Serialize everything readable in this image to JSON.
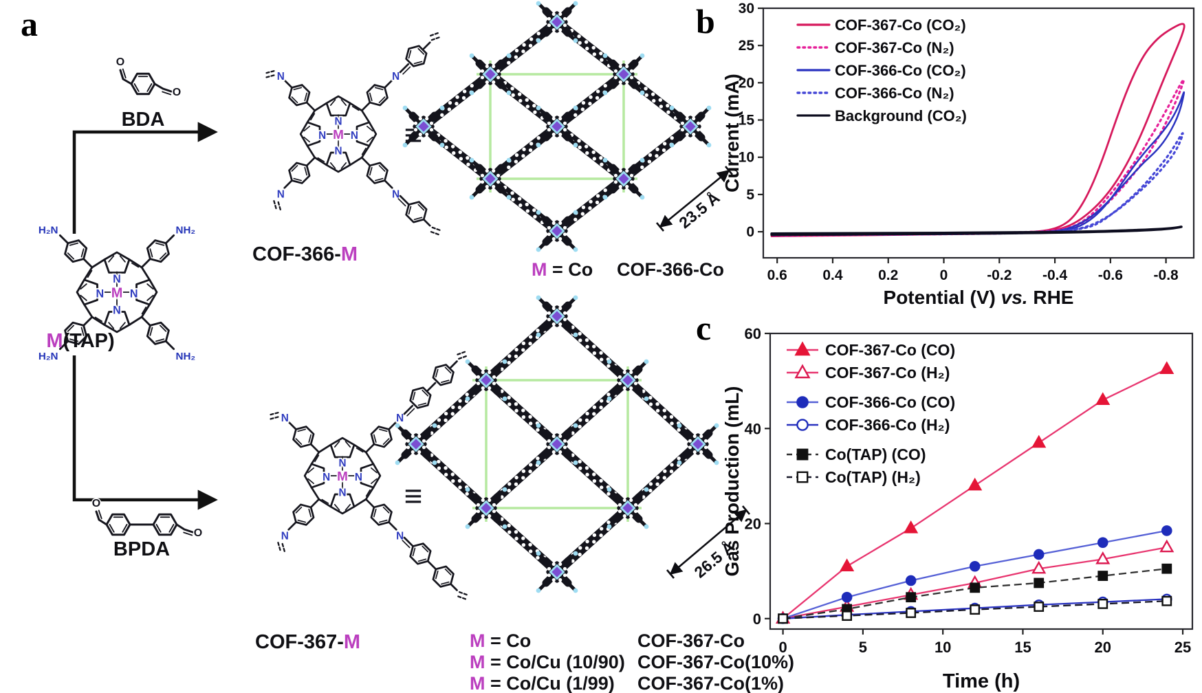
{
  "panel_a": {
    "label": "a",
    "bda_label": "BDA",
    "bpda_label": "BPDA",
    "equiv": "≡",
    "atoms": {
      "M": "M",
      "N": "N",
      "O": "O",
      "H2N": "H₂N",
      "NH2": "NH₂"
    },
    "mtap": {
      "m": "M",
      "rest": "(TAP)"
    },
    "cof366m": {
      "pre": "COF-366-",
      "m": "M"
    },
    "cof367m": {
      "pre": "COF-367-",
      "m": "M"
    },
    "crystal366": {
      "m": "M",
      "eq": " = Co",
      "name": "COF-366-Co",
      "dim": "23.5 Å"
    },
    "crystal367": {
      "dim": "26.5 Å",
      "rows": [
        {
          "m": "M",
          "eq": " = Co",
          "name": "COF-367-Co"
        },
        {
          "m": "M",
          "eq": " = Co/Cu (10/90)",
          "name": "COF-367-Co(10%)"
        },
        {
          "m": "M",
          "eq": " = Co/Cu (1/99)",
          "name": "COF-367-Co(1%)"
        }
      ]
    }
  },
  "panel_b": {
    "label": "b"
  },
  "panel_c": {
    "label": "c"
  },
  "colors": {
    "crimson_solid": "#d6195c",
    "pink_dotted": "#e62099",
    "blue_solid": "#2a33c0",
    "blue_dotted": "#4547d6",
    "background_line": "#0d0d1f",
    "metal_purple": "#7b4ed2",
    "nitrogen_cyan": "#9edcf2",
    "cell_green": "#b6e9a0",
    "magenta_M": "#bb3fbf"
  },
  "chart_data": [
    {
      "id": "cv",
      "type": "line",
      "xlabel_pre": "Potential (V) ",
      "xlabel_vs": "vs.",
      "xlabel_post": " RHE",
      "ylabel": "Current (mA)",
      "xlim": [
        0.65,
        -0.9
      ],
      "ylim": [
        -3.5,
        30
      ],
      "xticks": [
        0.6,
        0.4,
        0.2,
        0,
        -0.2,
        -0.4,
        -0.6,
        -0.8
      ],
      "yticks": [
        0,
        5,
        10,
        15,
        20,
        25,
        30
      ],
      "grid": false,
      "legend_position": "top-left",
      "series": [
        {
          "name": "COF-367-Co (CO₂)",
          "color": "#d6195c",
          "dash": "solid",
          "width": 2.8,
          "points": [
            [
              0.62,
              -0.55
            ],
            [
              0.3,
              -0.4
            ],
            [
              0,
              -0.3
            ],
            [
              -0.2,
              -0.2
            ],
            [
              -0.35,
              0
            ],
            [
              -0.42,
              0.6
            ],
            [
              -0.47,
              2
            ],
            [
              -0.52,
              5
            ],
            [
              -0.57,
              9.5
            ],
            [
              -0.62,
              15
            ],
            [
              -0.67,
              20
            ],
            [
              -0.72,
              23.8
            ],
            [
              -0.77,
              26
            ],
            [
              -0.82,
              27.3
            ],
            [
              -0.87,
              28.2
            ],
            [
              -0.86,
              26.5
            ],
            [
              -0.82,
              23
            ],
            [
              -0.77,
              18.5
            ],
            [
              -0.72,
              13.8
            ],
            [
              -0.67,
              9.8
            ],
            [
              -0.62,
              6.6
            ],
            [
              -0.57,
              4.2
            ],
            [
              -0.52,
              2.4
            ],
            [
              -0.47,
              1.1
            ],
            [
              -0.42,
              0.35
            ],
            [
              -0.36,
              0
            ],
            [
              -0.25,
              -0.2
            ],
            [
              0,
              -0.35
            ],
            [
              0.62,
              -0.6
            ]
          ]
        },
        {
          "name": "COF-367-Co (N₂)",
          "color": "#e62099",
          "dash": "dotted",
          "width": 3.2,
          "points": [
            [
              0.62,
              -0.35
            ],
            [
              0.1,
              -0.25
            ],
            [
              -0.3,
              -0.1
            ],
            [
              -0.44,
              0.3
            ],
            [
              -0.5,
              1.3
            ],
            [
              -0.55,
              2.9
            ],
            [
              -0.6,
              5
            ],
            [
              -0.65,
              7.4
            ],
            [
              -0.7,
              10
            ],
            [
              -0.75,
              13
            ],
            [
              -0.8,
              16.2
            ],
            [
              -0.85,
              19.7
            ],
            [
              -0.87,
              20.8
            ],
            [
              -0.84,
              17.8
            ],
            [
              -0.79,
              13.8
            ],
            [
              -0.74,
              10.6
            ],
            [
              -0.69,
              8
            ],
            [
              -0.64,
              5.8
            ],
            [
              -0.59,
              3.8
            ],
            [
              -0.54,
              2.2
            ],
            [
              -0.49,
              1
            ],
            [
              -0.44,
              0.3
            ],
            [
              -0.38,
              -0.05
            ],
            [
              -0.2,
              -0.25
            ],
            [
              0.2,
              -0.4
            ],
            [
              0.62,
              -0.5
            ]
          ]
        },
        {
          "name": "COF-366-Co (CO₂)",
          "color": "#2a33c0",
          "dash": "solid",
          "width": 2.5,
          "points": [
            [
              0.62,
              -0.4
            ],
            [
              0.1,
              -0.3
            ],
            [
              -0.3,
              -0.15
            ],
            [
              -0.45,
              0.2
            ],
            [
              -0.5,
              0.9
            ],
            [
              -0.55,
              2.2
            ],
            [
              -0.6,
              4.3
            ],
            [
              -0.65,
              7
            ],
            [
              -0.7,
              9.6
            ],
            [
              -0.74,
              11.4
            ],
            [
              -0.78,
              13
            ],
            [
              -0.82,
              15
            ],
            [
              -0.85,
              17.2
            ],
            [
              -0.87,
              19.4
            ],
            [
              -0.85,
              16
            ],
            [
              -0.81,
              13
            ],
            [
              -0.77,
              11
            ],
            [
              -0.72,
              9.3
            ],
            [
              -0.67,
              7.3
            ],
            [
              -0.62,
              5.2
            ],
            [
              -0.57,
              3.2
            ],
            [
              -0.52,
              1.7
            ],
            [
              -0.47,
              0.7
            ],
            [
              -0.42,
              0.15
            ],
            [
              -0.35,
              -0.1
            ],
            [
              -0.1,
              -0.3
            ],
            [
              0.62,
              -0.45
            ]
          ]
        },
        {
          "name": "COF-366-Co (N₂)",
          "color": "#4547d6",
          "dash": "dotted",
          "width": 3.2,
          "points": [
            [
              0.62,
              -0.3
            ],
            [
              0,
              -0.2
            ],
            [
              -0.4,
              -0.05
            ],
            [
              -0.52,
              0.5
            ],
            [
              -0.57,
              1.4
            ],
            [
              -0.62,
              2.8
            ],
            [
              -0.67,
              4.4
            ],
            [
              -0.72,
              6.2
            ],
            [
              -0.77,
              8.4
            ],
            [
              -0.82,
              10.8
            ],
            [
              -0.87,
              14
            ],
            [
              -0.84,
              11
            ],
            [
              -0.79,
              8.6
            ],
            [
              -0.74,
              6.6
            ],
            [
              -0.69,
              4.9
            ],
            [
              -0.64,
              3.3
            ],
            [
              -0.59,
              2
            ],
            [
              -0.54,
              1
            ],
            [
              -0.49,
              0.4
            ],
            [
              -0.42,
              0
            ],
            [
              -0.3,
              -0.2
            ],
            [
              0.1,
              -0.35
            ],
            [
              0.62,
              -0.45
            ]
          ]
        },
        {
          "name": "Background (CO₂)",
          "color": "#0d0d1f",
          "dash": "solid",
          "width": 3.6,
          "points": [
            [
              0.62,
              -0.25
            ],
            [
              0.2,
              -0.2
            ],
            [
              -0.2,
              -0.12
            ],
            [
              -0.5,
              0
            ],
            [
              -0.65,
              0.15
            ],
            [
              -0.75,
              0.3
            ],
            [
              -0.82,
              0.45
            ],
            [
              -0.87,
              0.75
            ],
            [
              -0.8,
              0.3
            ],
            [
              -0.6,
              0.02
            ],
            [
              -0.3,
              -0.18
            ],
            [
              0.1,
              -0.3
            ],
            [
              0.62,
              -0.4
            ]
          ]
        }
      ]
    },
    {
      "id": "gas",
      "type": "line",
      "xlabel": "Time (h)",
      "ylabel": "Gas  Production (mL)",
      "xlim": [
        -0.8,
        25.6
      ],
      "ylim": [
        -2.2,
        60
      ],
      "xticks": [
        0,
        5,
        10,
        15,
        20,
        25
      ],
      "yticks": [
        0,
        20,
        40,
        60
      ],
      "grid": false,
      "legend_position": "top-left",
      "x": [
        0,
        4,
        8,
        12,
        16,
        20,
        24
      ],
      "series": [
        {
          "name": "COF-367-Co (CO)",
          "marker": "triangle",
          "fill": "filled",
          "color": "#e51537",
          "line_color": "#e8356f",
          "dashed": false,
          "values": [
            0,
            11,
            19,
            28,
            37,
            46,
            52.5
          ]
        },
        {
          "name": "COF-367-Co (H₂)",
          "marker": "triangle",
          "fill": "open",
          "color": "#dc1a50",
          "line_color": "#e8356f",
          "dashed": false,
          "values": [
            0,
            2.5,
            5,
            7.5,
            10.5,
            12.5,
            15
          ]
        },
        {
          "name": "COF-366-Co (CO)",
          "marker": "circle",
          "fill": "filled",
          "color": "#1e2cba",
          "line_color": "#5560d6",
          "dashed": false,
          "values": [
            0,
            4.5,
            8,
            11,
            13.5,
            16,
            18.5
          ]
        },
        {
          "name": "COF-366-Co (H₂)",
          "marker": "circle",
          "fill": "open",
          "color": "#1e2cba",
          "line_color": "#2a33c0",
          "dashed": false,
          "values": [
            0,
            0.8,
            1.5,
            2.2,
            2.9,
            3.5,
            4.1
          ]
        },
        {
          "name": "Co(TAP) (CO)",
          "marker": "square",
          "fill": "filled",
          "color": "#101010",
          "line_color": "#303030",
          "dashed": true,
          "values": [
            0,
            2,
            4.5,
            6.5,
            7.5,
            9,
            10.5
          ]
        },
        {
          "name": "Co(TAP) (H₂)",
          "marker": "square",
          "fill": "open",
          "color": "#101010",
          "line_color": "#181828",
          "dashed": true,
          "values": [
            0,
            0.6,
            1.2,
            1.9,
            2.5,
            3.1,
            3.7
          ]
        }
      ]
    }
  ]
}
